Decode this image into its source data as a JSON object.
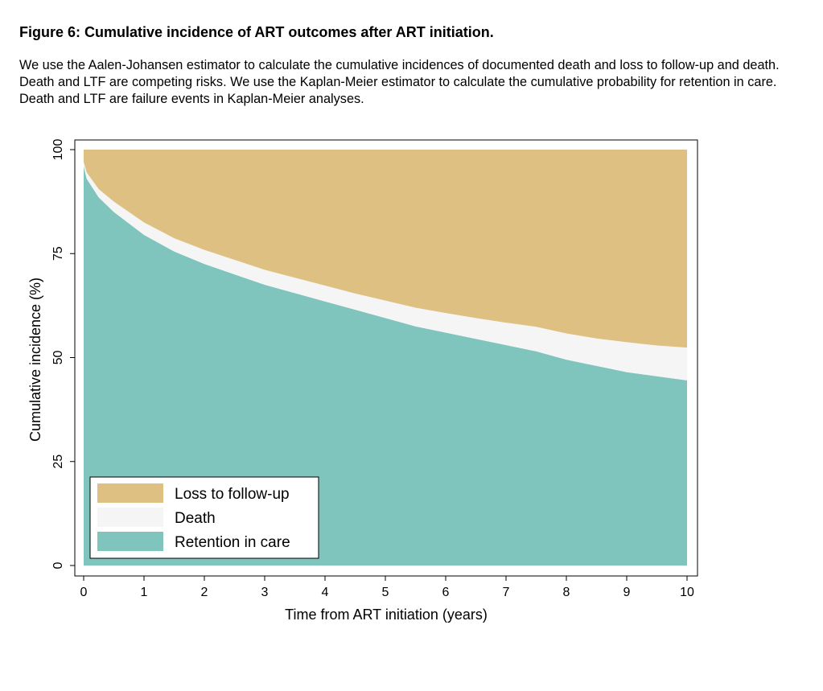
{
  "figure": {
    "title": "Figure 6: Cumulative incidence of ART outcomes after ART initiation.",
    "caption": "We use the Aalen-Johansen estimator to calculate the cumulative incidences of documented death and loss to follow-up and death. Death and LTF are competing risks. We use the Kaplan-Meier estimator to calculate the cumulative probability for retention in care. Death and LTF are failure events in Kaplan-Meier analyses."
  },
  "chart_data": {
    "type": "area",
    "stacked": true,
    "title": "",
    "xlabel": "Time from ART initiation (years)",
    "ylabel": "Cumulative incidence (%)",
    "xlim": [
      0,
      10
    ],
    "ylim": [
      0,
      100
    ],
    "xticks": [
      0,
      1,
      2,
      3,
      4,
      5,
      6,
      7,
      8,
      9,
      10
    ],
    "yticks": [
      0,
      25,
      50,
      75,
      100
    ],
    "grid": false,
    "legend": {
      "position": "bottom-left",
      "order": [
        "Loss to follow-up",
        "Death",
        "Retention in care"
      ]
    },
    "x": [
      0,
      0.05,
      0.25,
      0.5,
      1,
      1.5,
      2,
      2.5,
      3,
      3.5,
      4,
      4.5,
      5,
      5.5,
      6,
      6.5,
      7,
      7.5,
      8,
      8.5,
      9,
      9.5,
      10
    ],
    "series": [
      {
        "name": "Retention in care",
        "color": "#7fc4bd",
        "values": [
          96,
          93,
          88.5,
          85,
          79.5,
          75.5,
          72.5,
          70,
          67.5,
          65.5,
          63.5,
          61.5,
          59.5,
          57.5,
          56,
          54.5,
          53,
          51.5,
          49.5,
          48,
          46.5,
          45.5,
          44.5
        ]
      },
      {
        "name": "Death",
        "color": "#f5f5f5",
        "values": [
          1,
          1.5,
          2,
          2.5,
          3,
          3.2,
          3.4,
          3.5,
          3.6,
          3.7,
          3.8,
          3.9,
          4.2,
          4.5,
          4.7,
          5,
          5.4,
          5.9,
          6.3,
          6.6,
          7.2,
          7.4,
          7.9
        ]
      },
      {
        "name": "Loss to follow-up",
        "color": "#dfc083",
        "values": [
          3,
          5.5,
          9.5,
          12.5,
          17.5,
          21.3,
          24.1,
          26.5,
          28.9,
          30.8,
          32.7,
          34.6,
          36.3,
          38,
          39.3,
          40.5,
          41.6,
          42.6,
          44.2,
          45.4,
          46.3,
          47.1,
          47.6
        ]
      }
    ]
  }
}
